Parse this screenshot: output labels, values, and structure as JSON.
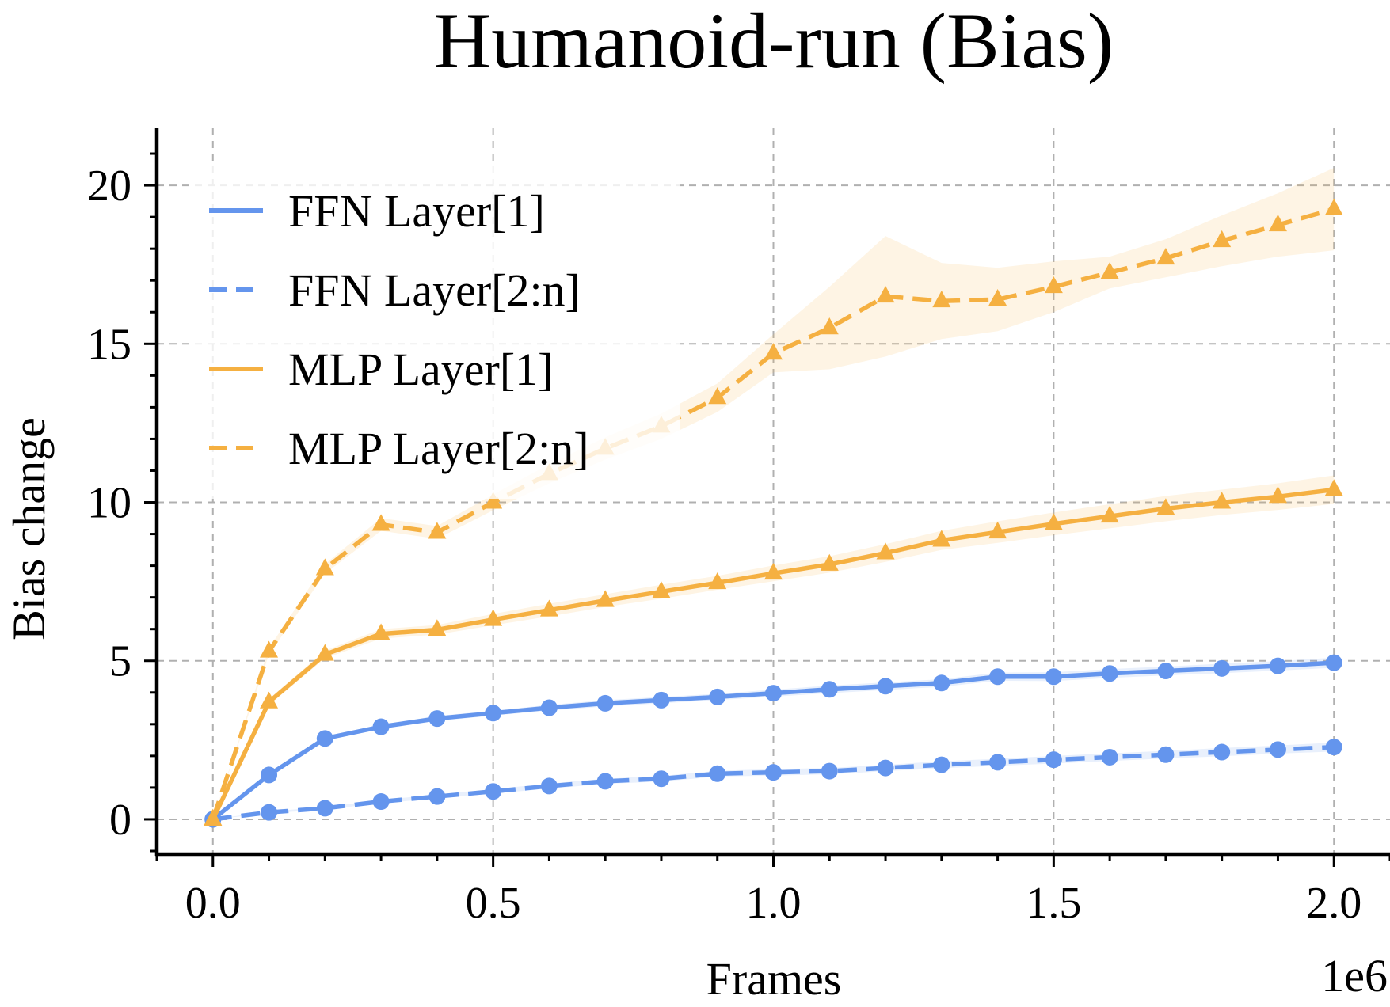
{
  "chart_data": {
    "type": "line",
    "title": "Humanoid-run (Bias)",
    "xlabel": "Frames",
    "ylabel": "Bias change",
    "x_offset_text": "1e6",
    "xlim": [
      -0.1,
      2.1
    ],
    "ylim": [
      -1.1,
      21.8
    ],
    "x_ticks": [
      0.0,
      0.5,
      1.0,
      1.5,
      2.0
    ],
    "x_tick_labels": [
      "0.0",
      "0.5",
      "1.0",
      "1.5",
      "2.0"
    ],
    "y_ticks": [
      0,
      5,
      10,
      15,
      20
    ],
    "y_tick_labels": [
      "0",
      "5",
      "10",
      "15",
      "20"
    ],
    "grid": true,
    "legend_position": "top-left",
    "x": [
      0.0,
      0.1,
      0.2,
      0.3,
      0.4,
      0.5,
      0.6,
      0.7,
      0.8,
      0.9,
      1.0,
      1.1,
      1.2,
      1.3,
      1.4,
      1.5,
      1.6,
      1.7,
      1.8,
      1.9,
      2.0
    ],
    "series": [
      {
        "name": "FFN Layer[1]",
        "color": "#6495ED",
        "linestyle": "solid",
        "marker": "circle",
        "values": [
          0.0,
          1.4,
          2.55,
          2.92,
          3.18,
          3.35,
          3.52,
          3.66,
          3.76,
          3.86,
          3.98,
          4.1,
          4.2,
          4.3,
          4.5,
          4.5,
          4.6,
          4.68,
          4.76,
          4.84,
          4.94
        ],
        "band": [
          0.0,
          0.05,
          0.06,
          0.07,
          0.08,
          0.08,
          0.09,
          0.1,
          0.1,
          0.1,
          0.11,
          0.12,
          0.12,
          0.12,
          0.13,
          0.14,
          0.14,
          0.14,
          0.15,
          0.15,
          0.16
        ]
      },
      {
        "name": "FFN Layer[2:n]",
        "color": "#6495ED",
        "linestyle": "dashed",
        "marker": "circle",
        "values": [
          0.0,
          0.22,
          0.35,
          0.56,
          0.72,
          0.88,
          1.05,
          1.2,
          1.28,
          1.44,
          1.48,
          1.52,
          1.62,
          1.72,
          1.8,
          1.88,
          1.96,
          2.04,
          2.12,
          2.2,
          2.28
        ],
        "band": [
          0.0,
          0.03,
          0.04,
          0.05,
          0.06,
          0.07,
          0.08,
          0.08,
          0.09,
          0.09,
          0.1,
          0.1,
          0.1,
          0.11,
          0.11,
          0.12,
          0.12,
          0.12,
          0.13,
          0.13,
          0.14
        ]
      },
      {
        "name": "MLP Layer[1]",
        "color": "#F5B041",
        "linestyle": "solid",
        "marker": "triangle",
        "values": [
          0.0,
          3.7,
          5.2,
          5.85,
          5.98,
          6.3,
          6.6,
          6.9,
          7.18,
          7.46,
          7.76,
          8.04,
          8.4,
          8.8,
          9.06,
          9.32,
          9.56,
          9.8,
          10.0,
          10.18,
          10.4
        ],
        "band": [
          0.0,
          0.1,
          0.12,
          0.15,
          0.15,
          0.18,
          0.2,
          0.2,
          0.22,
          0.22,
          0.25,
          0.26,
          0.28,
          0.3,
          0.34,
          0.36,
          0.38,
          0.4,
          0.4,
          0.42,
          0.45
        ]
      },
      {
        "name": "MLP Layer[2:n]",
        "color": "#F5B041",
        "linestyle": "dashed",
        "marker": "triangle",
        "values": [
          0.0,
          5.3,
          7.9,
          9.3,
          9.05,
          10.0,
          10.9,
          11.7,
          12.4,
          13.3,
          14.7,
          15.5,
          16.5,
          16.35,
          16.4,
          16.8,
          17.25,
          17.7,
          18.25,
          18.75,
          19.25
        ],
        "band": [
          0.0,
          0.1,
          0.15,
          0.2,
          0.2,
          0.25,
          0.3,
          0.35,
          0.4,
          0.45,
          0.6,
          1.3,
          1.9,
          1.2,
          1.0,
          0.8,
          0.5,
          0.6,
          0.8,
          1.0,
          1.3
        ]
      }
    ]
  }
}
